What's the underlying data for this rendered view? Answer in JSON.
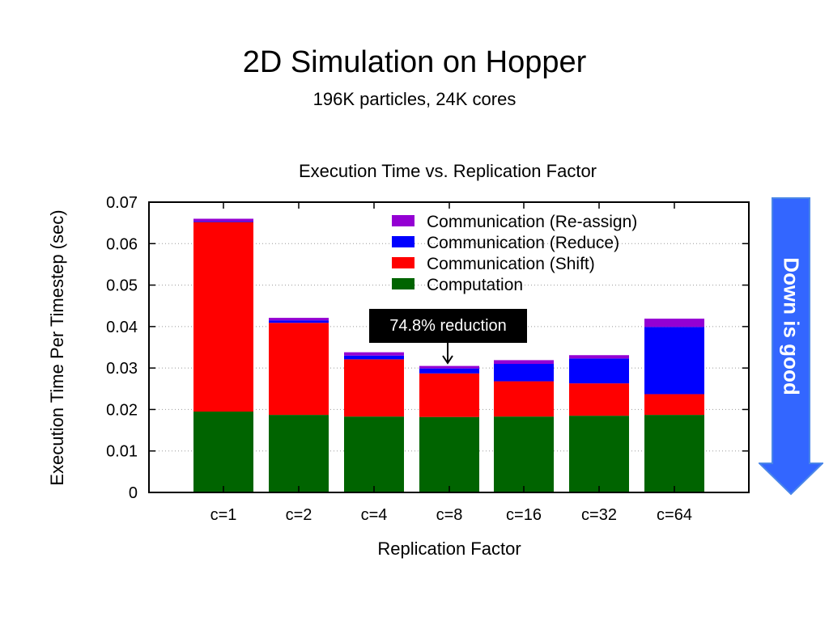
{
  "slide": {
    "title": "2D Simulation on Hopper",
    "subtitle": "196K particles, 24K cores"
  },
  "callout": {
    "text": "74.8% reduction"
  },
  "side_arrow": {
    "text": "Down is good",
    "color": "#3366ff"
  },
  "chart_data": {
    "type": "bar",
    "stacked": true,
    "title": "Execution Time vs. Replication Factor",
    "xlabel": "Replication Factor",
    "ylabel": "Execution Time Per Timestep (sec)",
    "ylim": [
      0,
      0.07
    ],
    "yticks": [
      "0",
      "0.01",
      "0.02",
      "0.03",
      "0.04",
      "0.05",
      "0.06",
      "0.07"
    ],
    "grid": true,
    "legend_position": "top-right",
    "categories": [
      "c=1",
      "c=2",
      "c=4",
      "c=8",
      "c=16",
      "c=32",
      "c=64"
    ],
    "series": [
      {
        "name": "Computation",
        "color": "#006400",
        "values": [
          0.0195,
          0.0187,
          0.0183,
          0.0182,
          0.0183,
          0.0185,
          0.0187
        ]
      },
      {
        "name": "Communication (Shift)",
        "color": "#ff0000",
        "values": [
          0.0457,
          0.0222,
          0.0138,
          0.0105,
          0.0085,
          0.0078,
          0.005
        ]
      },
      {
        "name": "Communication (Reduce)",
        "color": "#0000ff",
        "values": [
          0.0002,
          0.0006,
          0.0009,
          0.0012,
          0.0042,
          0.006,
          0.0162
        ]
      },
      {
        "name": "Communication (Re-assign)",
        "color": "#9400d3",
        "values": [
          0.0006,
          0.0006,
          0.0008,
          0.0006,
          0.0009,
          0.0008,
          0.002
        ]
      }
    ]
  }
}
